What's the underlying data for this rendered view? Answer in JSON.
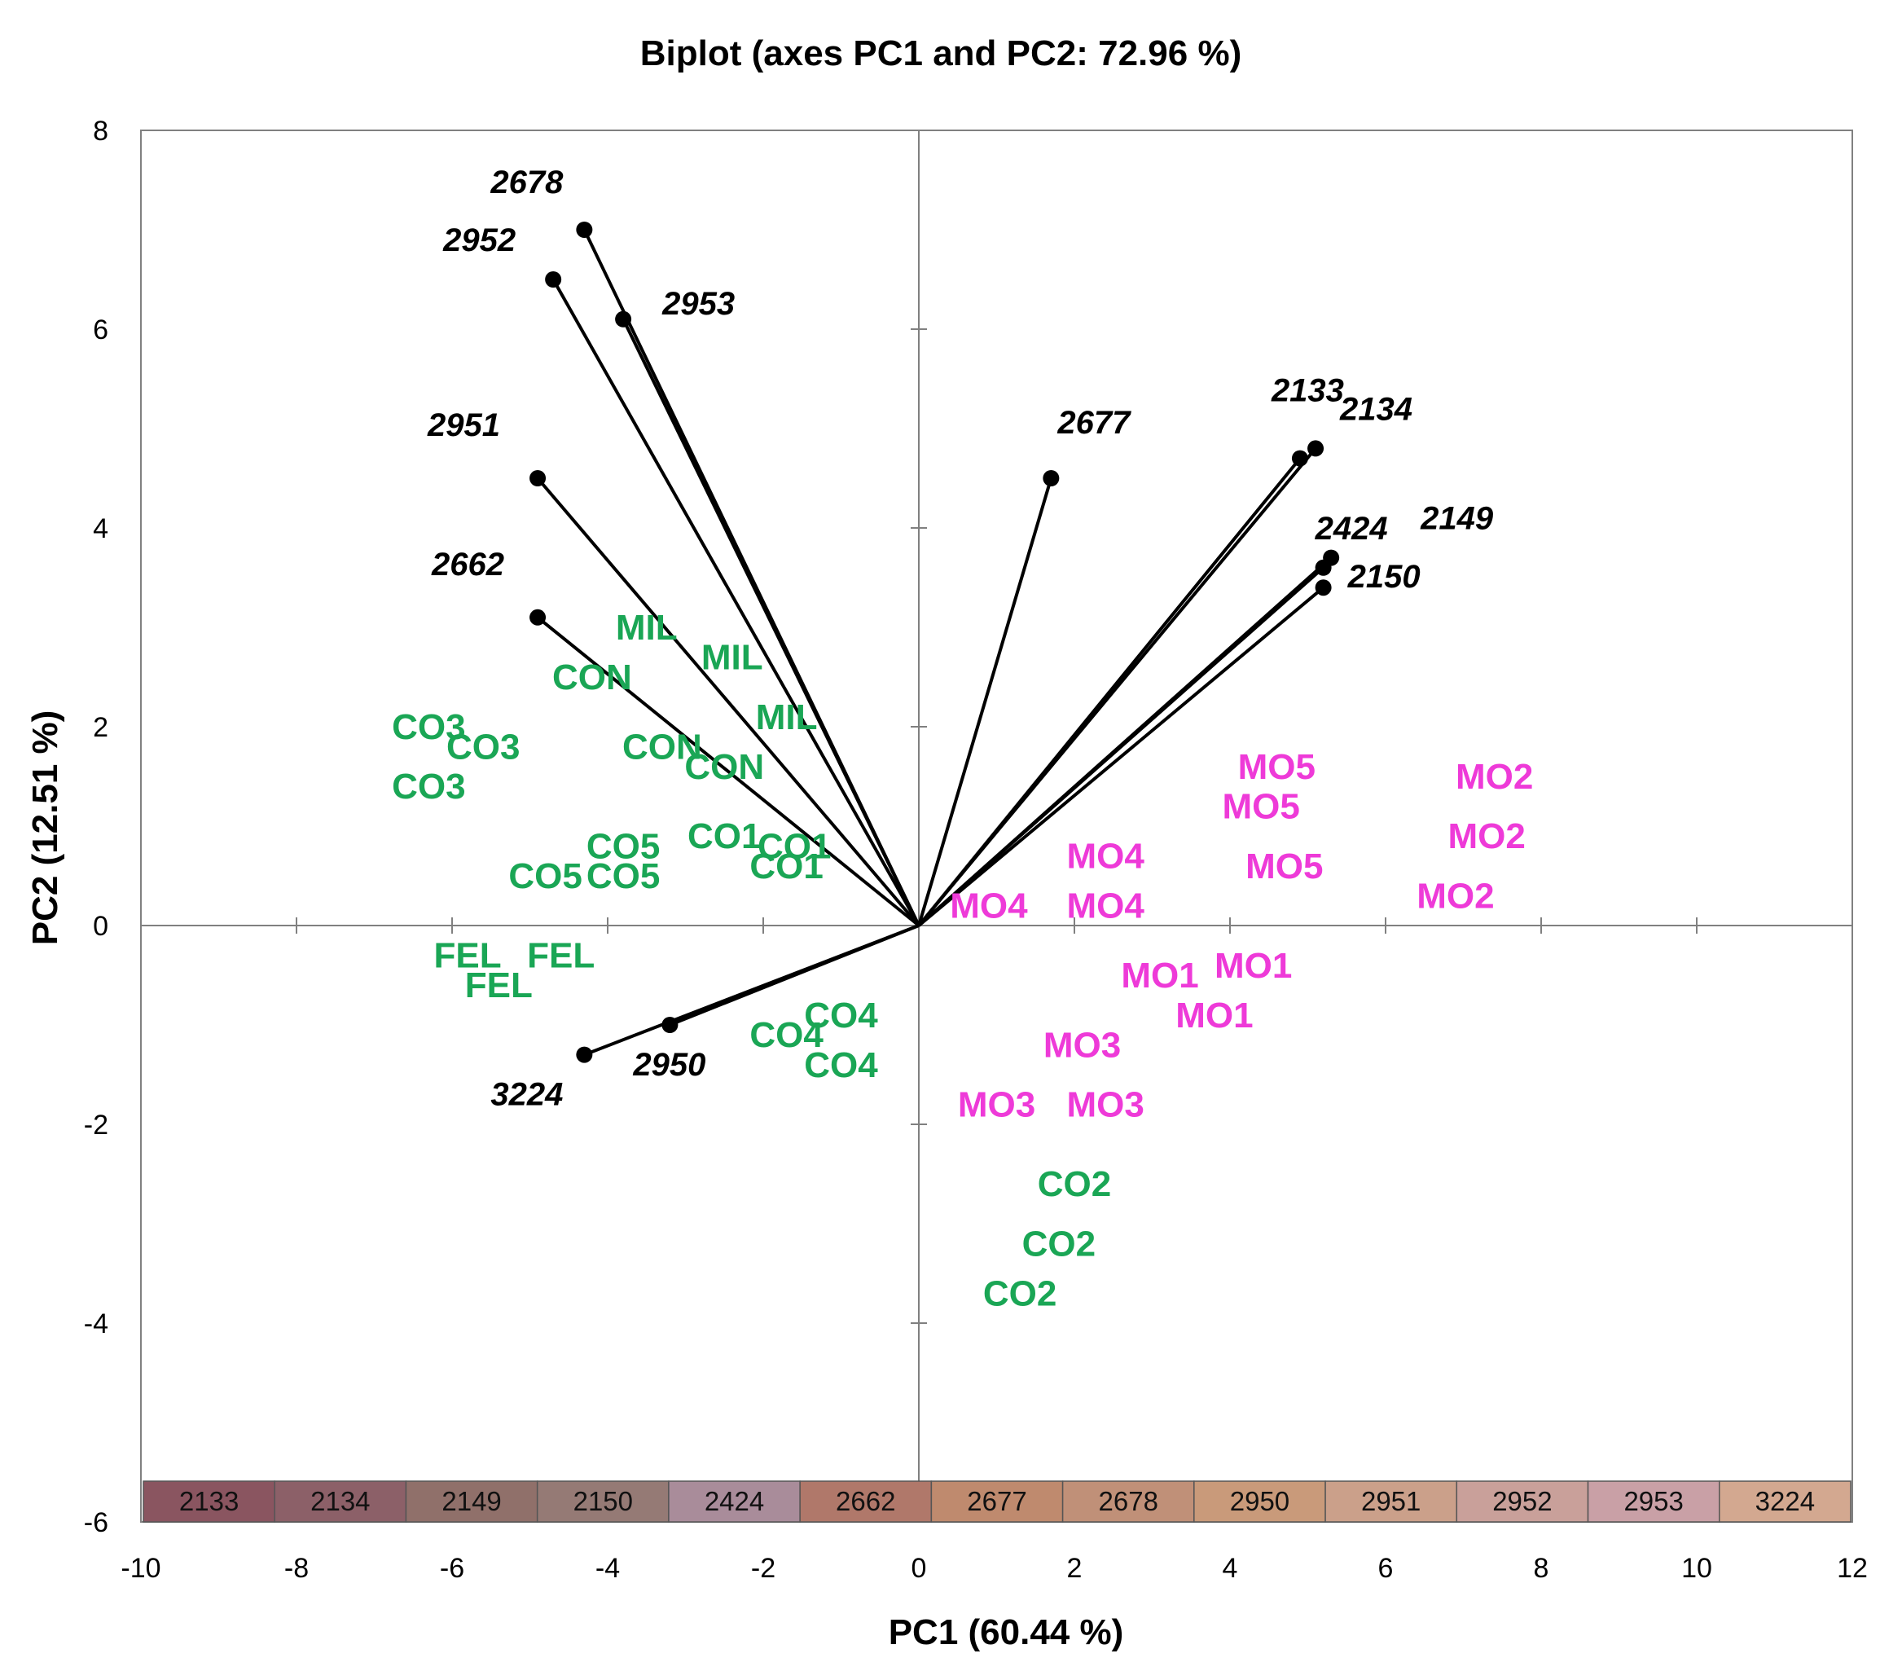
{
  "chart_data": {
    "type": "scatter",
    "title": "Biplot (axes PC1 and PC2: 72.96 %)",
    "xlabel": "PC1 (60.44 %)",
    "ylabel": "PC2 (12.51 %)",
    "xlim": [
      -10,
      12
    ],
    "ylim": [
      -6,
      8
    ],
    "xticks": [
      -10,
      -8,
      -6,
      -4,
      -2,
      0,
      2,
      4,
      6,
      8,
      10,
      12
    ],
    "yticks": [
      -6,
      -4,
      -2,
      0,
      2,
      4,
      6,
      8
    ],
    "colors": {
      "axis": "#000000",
      "vector": "#000000",
      "green_group": "#1aa655",
      "pink_group": "#ee3ad8"
    },
    "variables": [
      {
        "label": "2678",
        "x": -4.3,
        "y": 7.0
      },
      {
        "label": "2952",
        "x": -4.7,
        "y": 6.5
      },
      {
        "label": "2953",
        "x": -3.8,
        "y": 6.1
      },
      {
        "label": "2951",
        "x": -4.9,
        "y": 4.5
      },
      {
        "label": "2662",
        "x": -4.9,
        "y": 3.1
      },
      {
        "label": "2677",
        "x": 1.7,
        "y": 4.5
      },
      {
        "label": "2133",
        "x": 4.9,
        "y": 4.7
      },
      {
        "label": "2134",
        "x": 5.1,
        "y": 4.8
      },
      {
        "label": "2424",
        "x": 5.2,
        "y": 3.6
      },
      {
        "label": "2149",
        "x": 5.3,
        "y": 3.7
      },
      {
        "label": "2150",
        "x": 5.2,
        "y": 3.4
      },
      {
        "label": "2950",
        "x": -3.2,
        "y": -1.0
      },
      {
        "label": "3224",
        "x": -4.3,
        "y": -1.3
      }
    ],
    "observations": [
      {
        "label": "MIL",
        "x": -3.5,
        "y": 3.0,
        "group": "green"
      },
      {
        "label": "MIL",
        "x": -2.4,
        "y": 2.7,
        "group": "green"
      },
      {
        "label": "MIL",
        "x": -1.7,
        "y": 2.1,
        "group": "green"
      },
      {
        "label": "CON",
        "x": -4.2,
        "y": 2.5,
        "group": "green"
      },
      {
        "label": "CON",
        "x": -3.3,
        "y": 1.8,
        "group": "green"
      },
      {
        "label": "CON",
        "x": -2.5,
        "y": 1.6,
        "group": "green"
      },
      {
        "label": "CO3",
        "x": -6.3,
        "y": 2.0,
        "group": "green"
      },
      {
        "label": "CO3",
        "x": -5.6,
        "y": 1.8,
        "group": "green"
      },
      {
        "label": "CO3",
        "x": -6.3,
        "y": 1.4,
        "group": "green"
      },
      {
        "label": "CO5",
        "x": -3.8,
        "y": 0.8,
        "group": "green"
      },
      {
        "label": "CO5",
        "x": -4.8,
        "y": 0.5,
        "group": "green"
      },
      {
        "label": "CO5",
        "x": -3.8,
        "y": 0.5,
        "group": "green"
      },
      {
        "label": "CO1",
        "x": -2.5,
        "y": 0.9,
        "group": "green"
      },
      {
        "label": "CO1",
        "x": -1.6,
        "y": 0.8,
        "group": "green"
      },
      {
        "label": "CO1",
        "x": -1.7,
        "y": 0.6,
        "group": "green"
      },
      {
        "label": "FEL",
        "x": -5.8,
        "y": -0.3,
        "group": "green"
      },
      {
        "label": "FEL",
        "x": -4.6,
        "y": -0.3,
        "group": "green"
      },
      {
        "label": "FEL",
        "x": -5.4,
        "y": -0.6,
        "group": "green"
      },
      {
        "label": "CO4",
        "x": -1.0,
        "y": -0.9,
        "group": "green"
      },
      {
        "label": "CO4",
        "x": -1.7,
        "y": -1.1,
        "group": "green"
      },
      {
        "label": "CO4",
        "x": -1.0,
        "y": -1.4,
        "group": "green"
      },
      {
        "label": "CO2",
        "x": 2.0,
        "y": -2.6,
        "group": "green"
      },
      {
        "label": "CO2",
        "x": 1.8,
        "y": -3.2,
        "group": "green"
      },
      {
        "label": "CO2",
        "x": 1.3,
        "y": -3.7,
        "group": "green"
      },
      {
        "label": "MO5",
        "x": 4.6,
        "y": 1.6,
        "group": "pink"
      },
      {
        "label": "MO5",
        "x": 4.4,
        "y": 1.2,
        "group": "pink"
      },
      {
        "label": "MO5",
        "x": 4.7,
        "y": 0.6,
        "group": "pink"
      },
      {
        "label": "MO2",
        "x": 7.4,
        "y": 1.5,
        "group": "pink"
      },
      {
        "label": "MO2",
        "x": 7.3,
        "y": 0.9,
        "group": "pink"
      },
      {
        "label": "MO2",
        "x": 6.9,
        "y": 0.3,
        "group": "pink"
      },
      {
        "label": "MO4",
        "x": 2.4,
        "y": 0.7,
        "group": "pink"
      },
      {
        "label": "MO4",
        "x": 0.9,
        "y": 0.2,
        "group": "pink"
      },
      {
        "label": "MO4",
        "x": 2.4,
        "y": 0.2,
        "group": "pink"
      },
      {
        "label": "MO1",
        "x": 3.1,
        "y": -0.5,
        "group": "pink"
      },
      {
        "label": "MO1",
        "x": 4.3,
        "y": -0.4,
        "group": "pink"
      },
      {
        "label": "MO1",
        "x": 3.8,
        "y": -0.9,
        "group": "pink"
      },
      {
        "label": "MO3",
        "x": 2.1,
        "y": -1.2,
        "group": "pink"
      },
      {
        "label": "MO3",
        "x": 1.0,
        "y": -1.8,
        "group": "pink"
      },
      {
        "label": "MO3",
        "x": 2.4,
        "y": -1.8,
        "group": "pink"
      }
    ],
    "legend": [
      {
        "label": "2133",
        "color": "#8a5560"
      },
      {
        "label": "2134",
        "color": "#8c6068"
      },
      {
        "label": "2149",
        "color": "#90706a"
      },
      {
        "label": "2150",
        "color": "#957a75"
      },
      {
        "label": "2424",
        "color": "#a98c9a"
      },
      {
        "label": "2662",
        "color": "#b0786a"
      },
      {
        "label": "2677",
        "color": "#bf8a6e"
      },
      {
        "label": "2678",
        "color": "#c09078"
      },
      {
        "label": "2950",
        "color": "#c99a7a"
      },
      {
        "label": "2951",
        "color": "#cba08a"
      },
      {
        "label": "2952",
        "color": "#c9a09a"
      },
      {
        "label": "2953",
        "color": "#c9a0a6"
      },
      {
        "label": "3224",
        "color": "#d3a890"
      }
    ]
  }
}
